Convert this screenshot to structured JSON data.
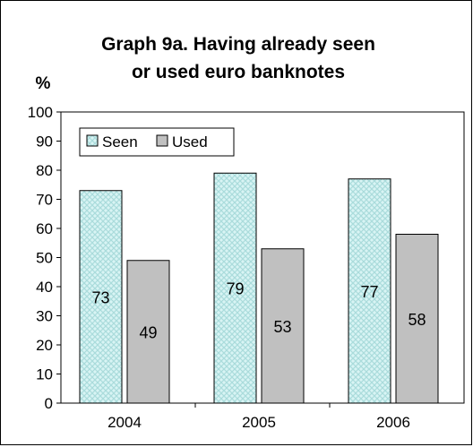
{
  "chart_data": {
    "type": "bar",
    "title": [
      "Graph 9a. Having already seen",
      "or used euro banknotes"
    ],
    "unit_label": "%",
    "categories": [
      "2004",
      "2005",
      "2006"
    ],
    "series": [
      {
        "name": "Seen",
        "values": [
          73,
          79,
          77
        ],
        "color": "#cdeeee",
        "data_labels": [
          "73",
          "79",
          "77"
        ]
      },
      {
        "name": "Used",
        "values": [
          49,
          53,
          58
        ],
        "color": "#c0c0c0",
        "data_labels": [
          "49",
          "53",
          "58"
        ]
      }
    ],
    "ylim": [
      0,
      100
    ],
    "yticks": [
      "0",
      "10",
      "20",
      "30",
      "40",
      "50",
      "60",
      "70",
      "80",
      "90",
      "100"
    ],
    "xlabel": "",
    "ylabel": "",
    "grid": false,
    "legend": "top-left"
  }
}
